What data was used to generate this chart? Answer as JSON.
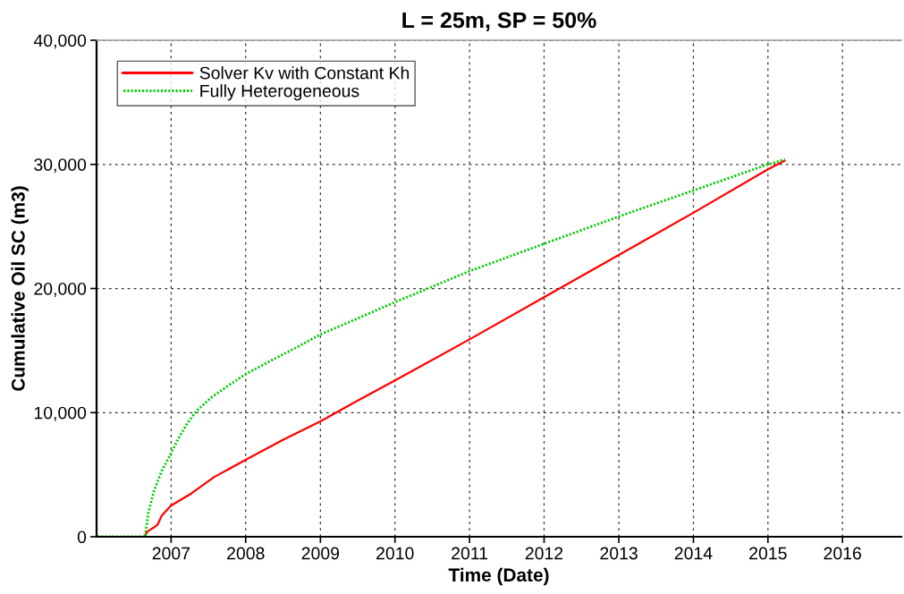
{
  "chart_data": {
    "type": "line",
    "title": "L = 25m, SP = 50%",
    "xlabel": "Time (Date)",
    "ylabel": "Cumulative Oil SC (m3)",
    "xlim": [
      "2006-01-01",
      "2016-10-15"
    ],
    "xticks": [
      "2007",
      "2008",
      "2009",
      "2010",
      "2011",
      "2012",
      "2013",
      "2014",
      "2015",
      "2016"
    ],
    "ylim": [
      0,
      40000
    ],
    "yticks": [
      0,
      {
        "value": 10000,
        "label": "10,000"
      },
      {
        "value": 20000,
        "label": "20,000"
      },
      {
        "value": 30000,
        "label": "30,000"
      },
      {
        "value": 40000,
        "label": "40,000"
      }
    ],
    "grid": true,
    "legend": "top left",
    "marker": "none",
    "series": [
      {
        "name": "Solver Kv with Constant Kh",
        "color": "#ff0000",
        "line_style": "solid",
        "x": [
          "2006-01-01",
          "2006-08-27",
          "2006-09-01",
          "2006-09-12",
          "2006-10-04",
          "2006-10-26",
          "2006-11-16",
          "2006-12-31",
          "2007-04-11",
          "2007-07-30",
          "2008-01-01",
          "2008-07-01",
          "2009-01-01",
          "2009-07-01",
          "2010-01-01",
          "2011-01-01",
          "2012-01-01",
          "2013-01-01",
          "2014-01-01",
          "2015-01-01",
          "2015-03-25"
        ],
        "values": [
          0,
          0,
          300,
          480,
          700,
          960,
          1700,
          2500,
          3500,
          4800,
          6200,
          7800,
          9300,
          10950,
          12600,
          15900,
          19300,
          22700,
          26100,
          29600,
          30300
        ]
      },
      {
        "name": "Fully Heterogeneous",
        "color": "#00cc00",
        "line_style": "dotted",
        "x": [
          "2006-01-01",
          "2006-08-27",
          "2006-09-11",
          "2006-10-11",
          "2006-11-16",
          "2006-12-31",
          "2007-02-05",
          "2007-03-20",
          "2007-05-03",
          "2007-07-15",
          "2007-10-10",
          "2008-01-01",
          "2008-05-17",
          "2008-09-11",
          "2009-01-01",
          "2009-04-25",
          "2010-01-01",
          "2011-01-01",
          "2012-01-01",
          "2013-01-01",
          "2014-01-01",
          "2015-01-01",
          "2015-03-25"
        ],
        "values": [
          0,
          0,
          1900,
          3800,
          5300,
          6700,
          7900,
          9100,
          10100,
          11200,
          12200,
          13100,
          14300,
          15300,
          16300,
          17100,
          18900,
          21400,
          23600,
          25800,
          27900,
          30000,
          30400
        ]
      }
    ]
  }
}
